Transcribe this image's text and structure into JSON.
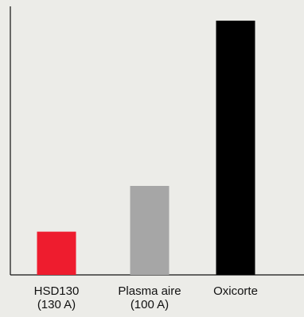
{
  "chart_data": {
    "type": "bar",
    "title": "",
    "xlabel": "",
    "ylabel": "",
    "categories": [
      {
        "line1": "HSD130",
        "line2": "(130 A)"
      },
      {
        "line1": "Plasma aire",
        "line2": "(100 A)"
      },
      {
        "line1": "Oxicorte",
        "line2": ""
      }
    ],
    "values": [
      17,
      35,
      100
    ],
    "colors": [
      "#ee1c2e",
      "#a6a6a6",
      "#000000"
    ],
    "ylim": [
      0,
      105
    ],
    "grid": false,
    "legend": "none"
  }
}
